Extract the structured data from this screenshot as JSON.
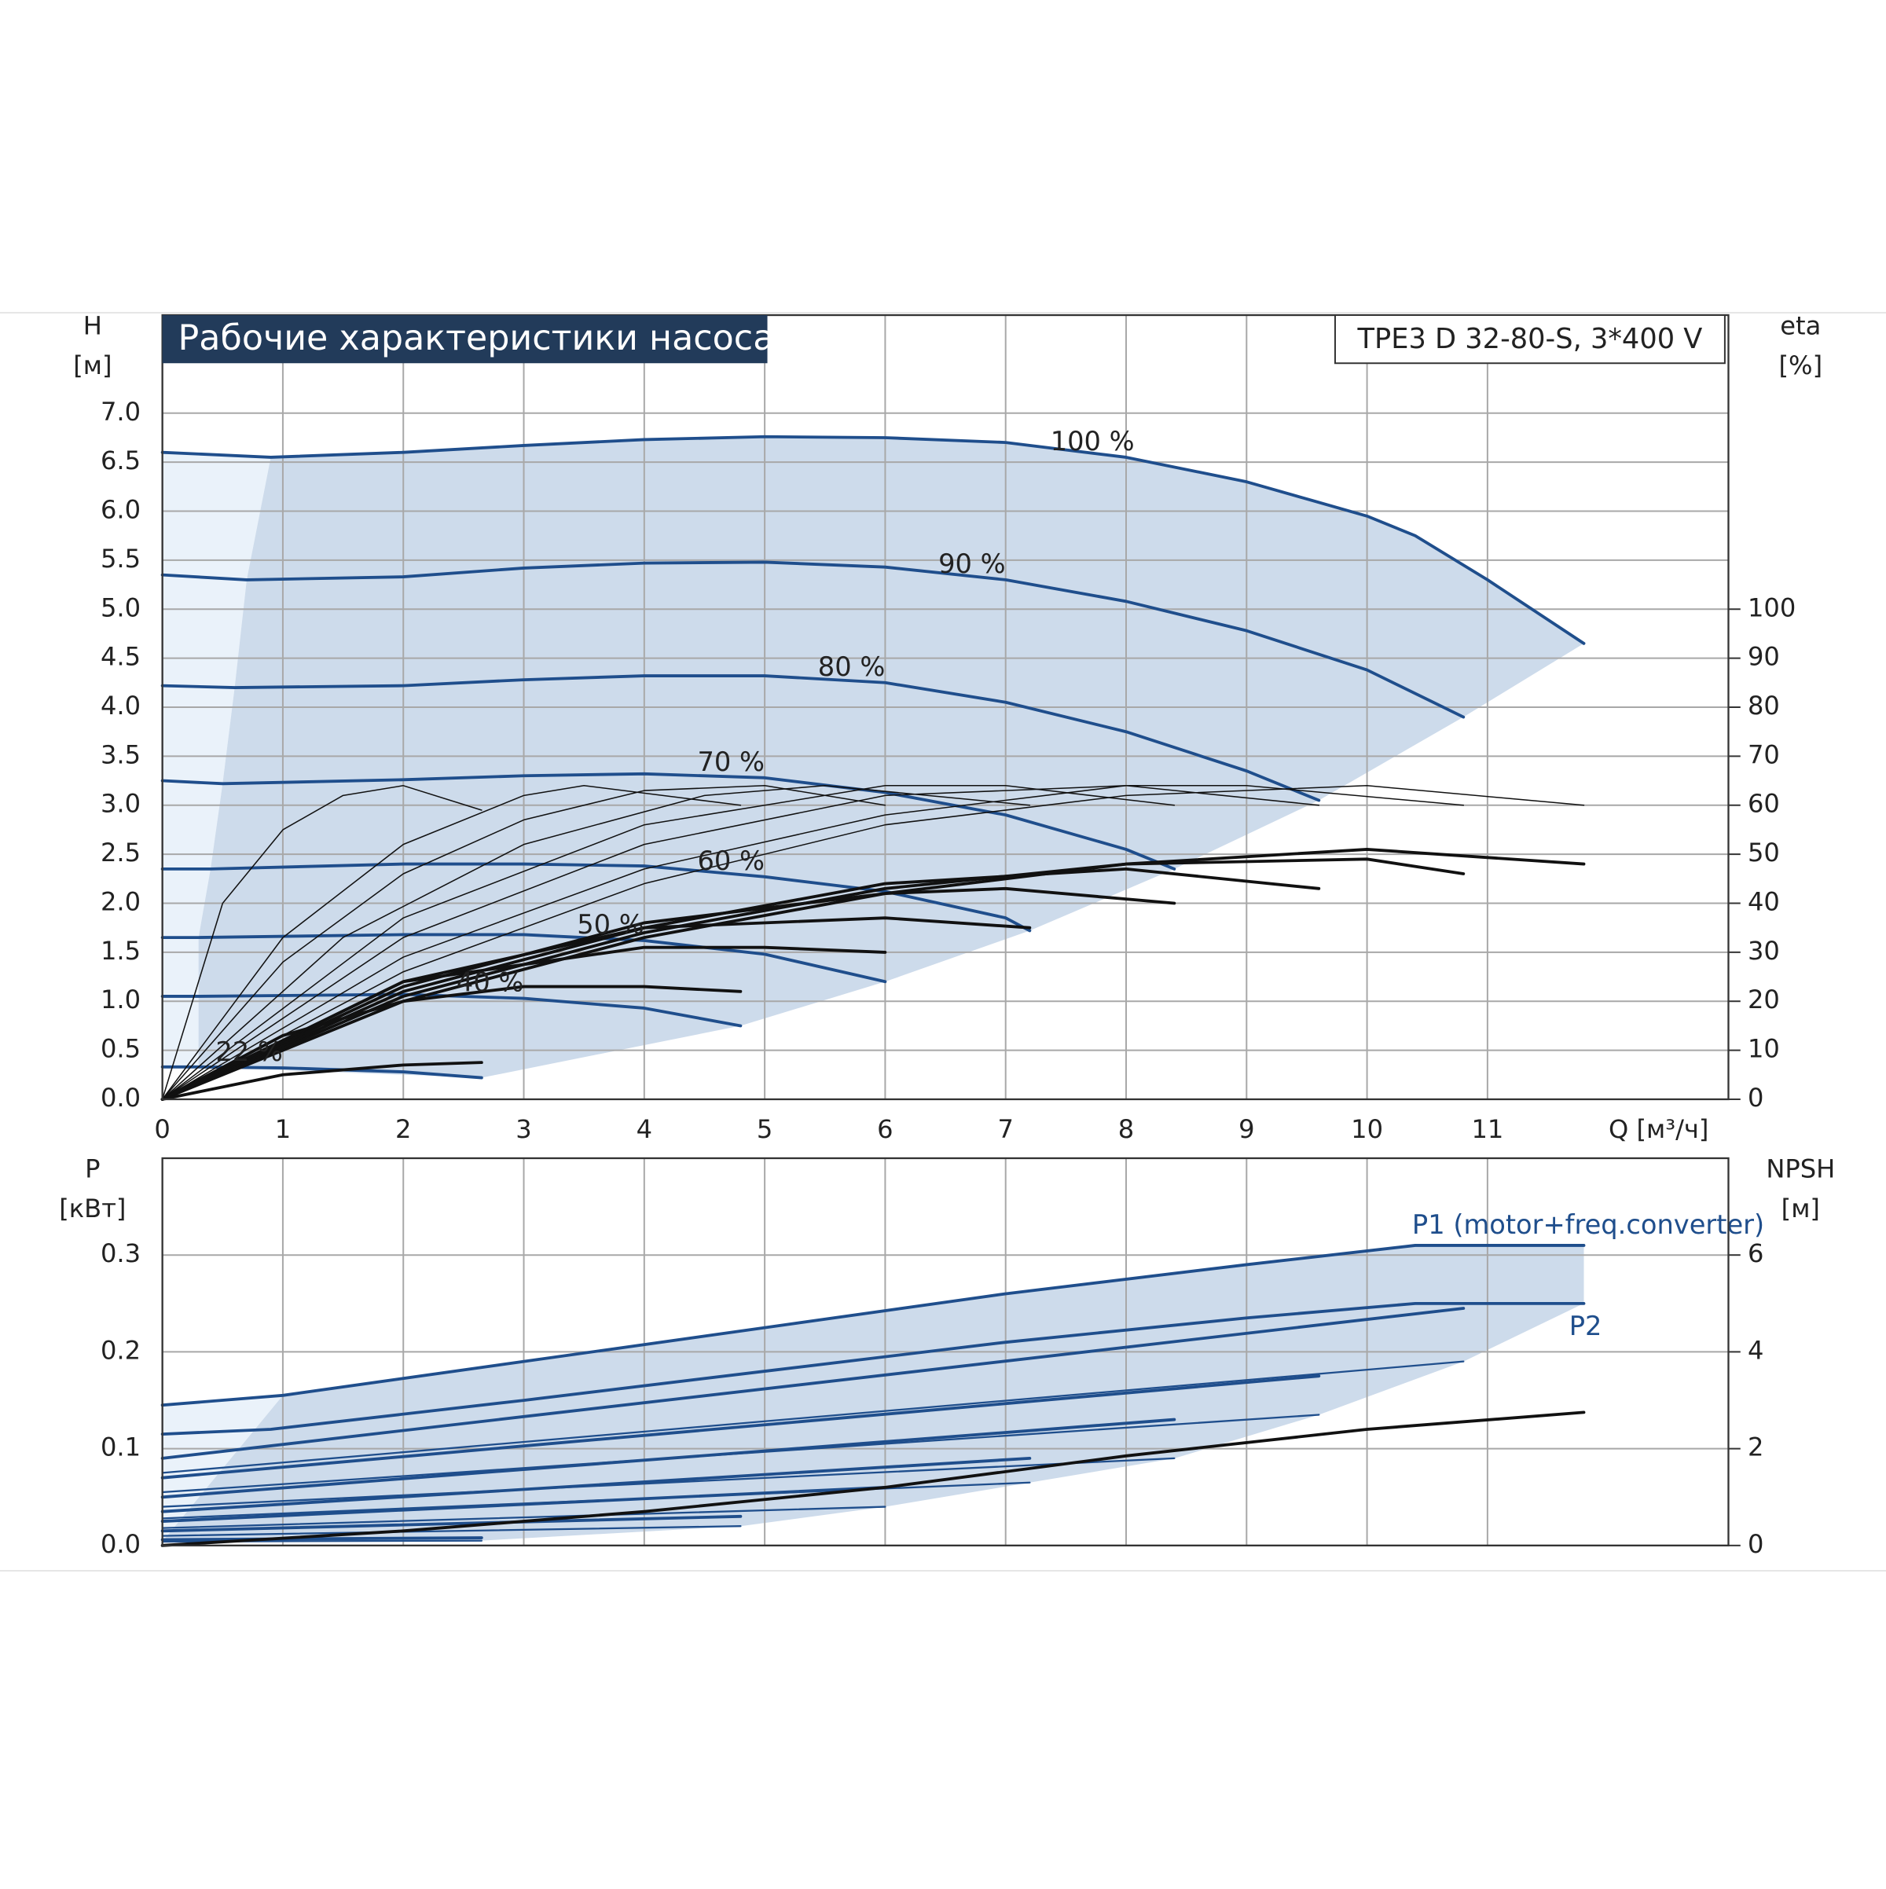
{
  "chart_data": [
    {
      "type": "line",
      "title": "Рабочие характеристики насоса",
      "subtitle": "TPE3 D 32-80-S, 3*400 V",
      "ylabel": [
        "H",
        "[м]"
      ],
      "y2label": [
        "eta",
        "[%]"
      ],
      "xlabel": "Q [м³/ч]",
      "xlim": [
        0,
        13
      ],
      "xticks": [
        0,
        1,
        2,
        3,
        4,
        5,
        6,
        7,
        8,
        9,
        10,
        11
      ],
      "xtick_labels": true,
      "ylim": [
        0,
        8
      ],
      "yticks": [
        {
          "value": 0,
          "label": "0.0"
        },
        0.5,
        {
          "value": 1,
          "label": "1.0"
        },
        1.5,
        {
          "value": 2,
          "label": "2.0"
        },
        2.5,
        {
          "value": 3,
          "label": "3.0"
        },
        3.5,
        {
          "value": 4,
          "label": "4.0"
        },
        4.5,
        {
          "value": 5,
          "label": "5.0"
        },
        5.5,
        {
          "value": 6,
          "label": "6.0"
        },
        6.5,
        {
          "value": 7,
          "label": "7.0"
        }
      ],
      "y2lim": [
        0,
        160
      ],
      "y2ticks": [
        0,
        10,
        20,
        30,
        40,
        50,
        60,
        70,
        80,
        90,
        100
      ],
      "grid": true,
      "region_color": "#cddbeb",
      "region_light_color": "#eaf2fa",
      "series": [
        {
          "name": "100 %",
          "kind": "head",
          "color": "#1f4e8c",
          "width": 2.5,
          "x": [
            0,
            0.9,
            2,
            3,
            4,
            5,
            6,
            7,
            8,
            9,
            10,
            10.4,
            11,
            11.8
          ],
          "values": [
            6.6,
            6.55,
            6.6,
            6.67,
            6.73,
            6.76,
            6.75,
            6.7,
            6.55,
            6.3,
            5.95,
            5.75,
            5.3,
            4.65
          ]
        },
        {
          "name": "90 %",
          "kind": "head",
          "color": "#1f4e8c",
          "width": 2.5,
          "x": [
            0,
            0.7,
            2,
            3,
            4,
            5,
            6,
            7,
            8,
            9,
            10,
            10.8
          ],
          "values": [
            5.35,
            5.3,
            5.33,
            5.42,
            5.47,
            5.48,
            5.43,
            5.3,
            5.08,
            4.78,
            4.38,
            3.9
          ]
        },
        {
          "name": "80 %",
          "kind": "head",
          "color": "#1f4e8c",
          "width": 2.5,
          "x": [
            0,
            0.6,
            2,
            3,
            4,
            5,
            6,
            7,
            8,
            9,
            9.6
          ],
          "values": [
            4.22,
            4.2,
            4.22,
            4.28,
            4.32,
            4.32,
            4.25,
            4.05,
            3.75,
            3.35,
            3.05
          ]
        },
        {
          "name": "70 %",
          "kind": "head",
          "color": "#1f4e8c",
          "width": 2.5,
          "x": [
            0,
            0.5,
            2,
            3,
            4,
            5,
            6,
            7,
            8,
            8.4
          ],
          "values": [
            3.25,
            3.22,
            3.26,
            3.3,
            3.32,
            3.28,
            3.13,
            2.9,
            2.55,
            2.35
          ]
        },
        {
          "name": "60 %",
          "kind": "head",
          "color": "#1f4e8c",
          "width": 2.5,
          "x": [
            0,
            0.4,
            2,
            3,
            4,
            5,
            6,
            7,
            7.2
          ],
          "values": [
            2.35,
            2.35,
            2.4,
            2.4,
            2.38,
            2.27,
            2.12,
            1.85,
            1.72
          ]
        },
        {
          "name": "50 %",
          "kind": "head",
          "color": "#1f4e8c",
          "width": 2.5,
          "x": [
            0,
            0.3,
            2,
            3,
            4,
            5,
            6
          ],
          "values": [
            1.65,
            1.65,
            1.68,
            1.68,
            1.62,
            1.48,
            1.2
          ]
        },
        {
          "name": "40 %",
          "kind": "head",
          "color": "#1f4e8c",
          "width": 2.5,
          "x": [
            0,
            0.3,
            2,
            3,
            4,
            4.8
          ],
          "values": [
            1.05,
            1.05,
            1.07,
            1.03,
            0.93,
            0.75
          ]
        },
        {
          "name": "22 %",
          "kind": "head",
          "color": "#1f4e8c",
          "width": 2.5,
          "x": [
            0,
            0.3,
            1,
            2,
            2.65
          ],
          "values": [
            0.33,
            0.33,
            0.32,
            0.28,
            0.22
          ]
        },
        {
          "kind": "eta",
          "axis": "y2",
          "color": "#111111",
          "width": 1,
          "x": [
            0,
            0.5,
            1,
            1.5,
            2,
            2.65
          ],
          "values": [
            0,
            40,
            55,
            62,
            64,
            59
          ]
        },
        {
          "kind": "eta",
          "axis": "y2",
          "color": "#111111",
          "width": 1,
          "x": [
            0,
            1,
            2,
            3,
            3.5,
            4.8
          ],
          "values": [
            0,
            33,
            52,
            62,
            64,
            60
          ]
        },
        {
          "kind": "eta",
          "axis": "y2",
          "color": "#111111",
          "width": 1,
          "x": [
            0,
            1,
            2,
            3,
            4,
            5,
            6
          ],
          "values": [
            0,
            28,
            46,
            57,
            63,
            64,
            60
          ]
        },
        {
          "kind": "eta",
          "axis": "y2",
          "color": "#111111",
          "width": 1,
          "x": [
            0,
            1.5,
            3,
            4.5,
            5.5,
            7.2
          ],
          "values": [
            0,
            33,
            52,
            62,
            64,
            60
          ]
        },
        {
          "kind": "eta",
          "axis": "y2",
          "color": "#111111",
          "width": 1,
          "x": [
            0,
            2,
            4,
            6,
            7,
            8.4
          ],
          "values": [
            0,
            37,
            56,
            64,
            64,
            60
          ]
        },
        {
          "kind": "eta",
          "axis": "y2",
          "color": "#111111",
          "width": 1,
          "x": [
            0,
            2,
            4,
            6,
            8,
            9.6
          ],
          "values": [
            0,
            33,
            52,
            62,
            64,
            60
          ]
        },
        {
          "kind": "eta",
          "axis": "y2",
          "color": "#111111",
          "width": 1,
          "x": [
            0,
            2,
            4,
            6,
            8,
            9,
            10.8
          ],
          "values": [
            0,
            29,
            47,
            58,
            64,
            64,
            60
          ]
        },
        {
          "kind": "eta",
          "axis": "y2",
          "color": "#111111",
          "width": 1,
          "x": [
            0,
            2,
            4,
            6,
            8,
            10,
            11.8
          ],
          "values": [
            0,
            26,
            44,
            56,
            62,
            64,
            60
          ]
        },
        {
          "kind": "eta",
          "axis": "y2",
          "color": "#111111",
          "width": 2.5,
          "x": [
            0,
            2,
            4,
            6,
            8,
            10,
            11.8
          ],
          "values": [
            0,
            20,
            33,
            42,
            48,
            51,
            48
          ]
        },
        {
          "kind": "eta",
          "axis": "y2",
          "color": "#111111",
          "width": 2.5,
          "x": [
            0,
            2,
            4,
            6,
            8,
            10,
            10.8
          ],
          "values": [
            0,
            21,
            34,
            43,
            48,
            49,
            46
          ]
        },
        {
          "kind": "eta",
          "axis": "y2",
          "color": "#111111",
          "width": 2.5,
          "x": [
            0,
            2,
            4,
            6,
            8,
            9.6
          ],
          "values": [
            0,
            22,
            35,
            44,
            47,
            43
          ]
        },
        {
          "kind": "eta",
          "axis": "y2",
          "color": "#111111",
          "width": 2.5,
          "x": [
            0,
            2,
            4,
            6,
            7,
            8.4
          ],
          "values": [
            0,
            23,
            36,
            42,
            43,
            40
          ]
        },
        {
          "kind": "eta",
          "axis": "y2",
          "color": "#111111",
          "width": 2.5,
          "x": [
            0,
            2,
            4,
            6,
            7.2
          ],
          "values": [
            0,
            24,
            35,
            37,
            35
          ]
        },
        {
          "kind": "eta",
          "axis": "y2",
          "color": "#111111",
          "width": 2.5,
          "x": [
            0,
            2,
            4,
            5,
            6
          ],
          "values": [
            0,
            24,
            31,
            31,
            30
          ]
        },
        {
          "kind": "eta",
          "axis": "y2",
          "color": "#111111",
          "width": 2.5,
          "x": [
            0,
            1,
            2,
            3,
            4,
            4.8
          ],
          "values": [
            0,
            13,
            20,
            23,
            23,
            22
          ]
        },
        {
          "kind": "eta",
          "axis": "y2",
          "color": "#111111",
          "width": 2.5,
          "x": [
            0,
            1,
            2,
            2.65
          ],
          "values": [
            0,
            5,
            7,
            7.5
          ]
        }
      ]
    },
    {
      "type": "line",
      "ylabel": [
        "P",
        "[кВт]"
      ],
      "y2label": [
        "NPSH",
        "[м]"
      ],
      "xlim": [
        0,
        13
      ],
      "xticks": [
        0,
        1,
        2,
        3,
        4,
        5,
        6,
        7,
        8,
        9,
        10,
        11
      ],
      "xtick_labels": false,
      "ylim": [
        0,
        0.4
      ],
      "yticks": [
        {
          "value": 0,
          "label": "0.0"
        },
        0.1,
        0.2,
        0.3
      ],
      "y2lim": [
        0,
        8
      ],
      "y2ticks": [
        0,
        2,
        4,
        6
      ],
      "grid": true,
      "region_color": "#cddbeb",
      "region_light_color": "#eaf2fa",
      "series": [
        {
          "name": "P1 (motor+freq.converter)",
          "kind": "P1",
          "color": "#1f4e8c",
          "width": 2.5,
          "x": [
            0,
            1,
            3,
            5,
            7,
            9,
            10.4,
            11.8
          ],
          "values": [
            0.145,
            0.155,
            0.19,
            0.225,
            0.26,
            0.29,
            0.31,
            0.31
          ]
        },
        {
          "name": "P2",
          "kind": "P2",
          "color": "#1f4e8c",
          "width": 2.5,
          "x": [
            0,
            0.9,
            3,
            5,
            7,
            9,
            10.4,
            11.8
          ],
          "values": [
            0.115,
            0.12,
            0.15,
            0.18,
            0.21,
            0.235,
            0.25,
            0.25
          ]
        },
        {
          "kind": "P1",
          "color": "#1f4e8c",
          "width": 2.5,
          "x": [
            0,
            10.8
          ],
          "values": [
            0.09,
            0.245
          ]
        },
        {
          "kind": "P1",
          "color": "#1f4e8c",
          "width": 2.5,
          "x": [
            0,
            9.6
          ],
          "values": [
            0.07,
            0.175
          ]
        },
        {
          "kind": "P1",
          "color": "#1f4e8c",
          "width": 2.5,
          "x": [
            0,
            8.4
          ],
          "values": [
            0.05,
            0.13
          ]
        },
        {
          "kind": "P1",
          "color": "#1f4e8c",
          "width": 2.5,
          "x": [
            0,
            7.2
          ],
          "values": [
            0.035,
            0.09
          ]
        },
        {
          "kind": "P1",
          "color": "#1f4e8c",
          "width": 2.5,
          "x": [
            0,
            6
          ],
          "values": [
            0.025,
            0.06
          ]
        },
        {
          "kind": "P1",
          "color": "#1f4e8c",
          "width": 2.5,
          "x": [
            0,
            4.8
          ],
          "values": [
            0.015,
            0.03
          ]
        },
        {
          "kind": "P1",
          "color": "#1f4e8c",
          "width": 2.5,
          "x": [
            0,
            2.65
          ],
          "values": [
            0.006,
            0.008
          ]
        },
        {
          "kind": "P2",
          "color": "#1f4e8c",
          "width": 1.5,
          "x": [
            0,
            10.8
          ],
          "values": [
            0.075,
            0.19
          ]
        },
        {
          "kind": "P2",
          "color": "#1f4e8c",
          "width": 1.5,
          "x": [
            0,
            9.6
          ],
          "values": [
            0.055,
            0.135
          ]
        },
        {
          "kind": "P2",
          "color": "#1f4e8c",
          "width": 1.5,
          "x": [
            0,
            8.4
          ],
          "values": [
            0.04,
            0.09
          ]
        },
        {
          "kind": "P2",
          "color": "#1f4e8c",
          "width": 1.5,
          "x": [
            0,
            7.2
          ],
          "values": [
            0.028,
            0.065
          ]
        },
        {
          "kind": "P2",
          "color": "#1f4e8c",
          "width": 1.5,
          "x": [
            0,
            6
          ],
          "values": [
            0.018,
            0.04
          ]
        },
        {
          "kind": "P2",
          "color": "#1f4e8c",
          "width": 1.5,
          "x": [
            0,
            4.8
          ],
          "values": [
            0.01,
            0.02
          ]
        },
        {
          "kind": "P2",
          "color": "#1f4e8c",
          "width": 1.5,
          "x": [
            0,
            2.65
          ],
          "values": [
            0.004,
            0.005
          ]
        },
        {
          "kind": "NPSH",
          "axis": "y2",
          "color": "#111111",
          "width": 2.5,
          "x": [
            0,
            2,
            4,
            6,
            8,
            10,
            11.8
          ],
          "values": [
            0,
            0.3,
            0.7,
            1.2,
            1.85,
            2.4,
            2.75
          ]
        }
      ]
    }
  ]
}
